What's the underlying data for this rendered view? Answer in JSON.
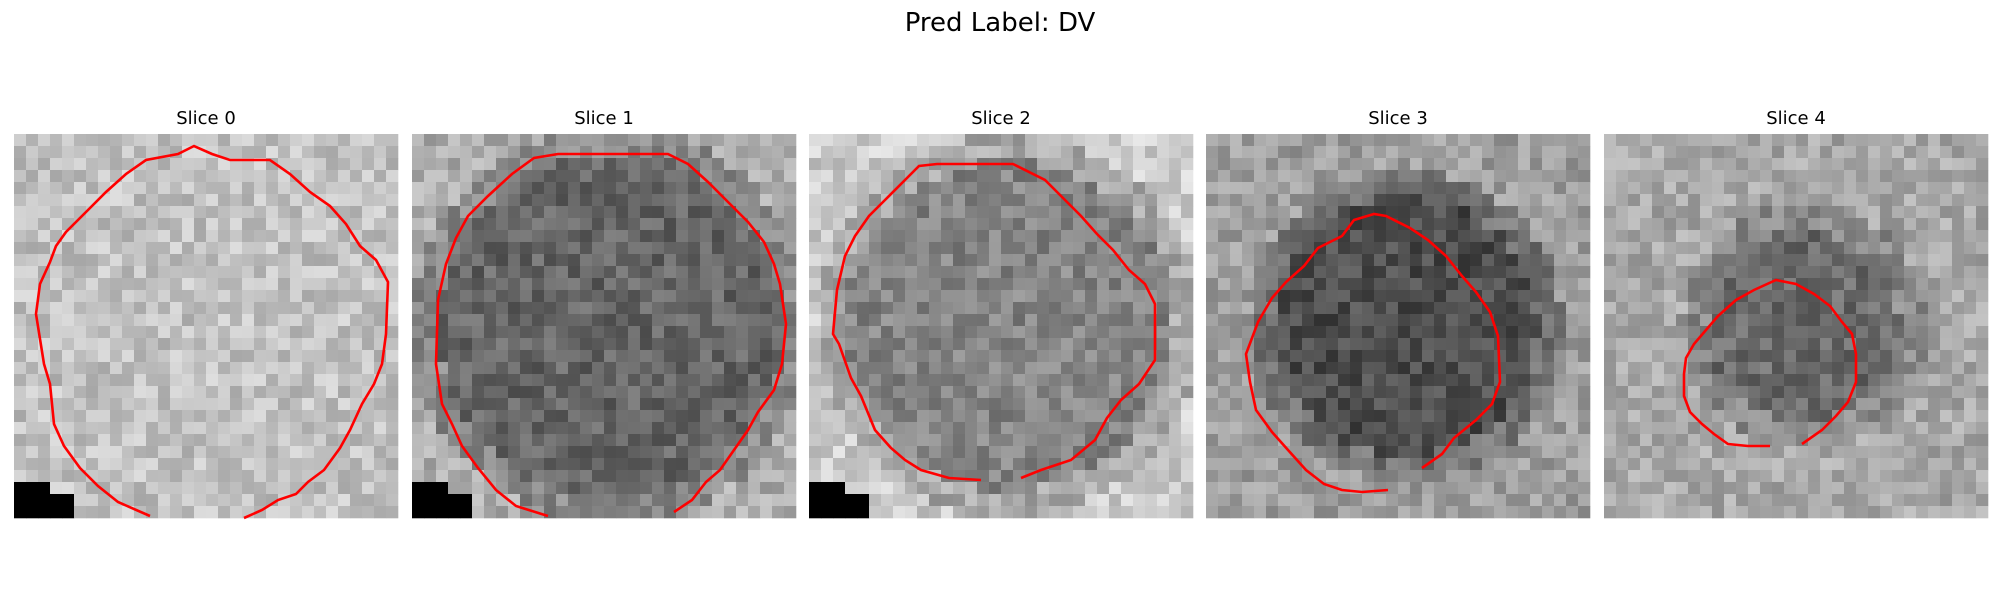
{
  "figure": {
    "title": "Pred Label: DV"
  },
  "outline_color": "#ff0000",
  "slices": [
    {
      "title": "Slice 0",
      "mean_gray": 0.76,
      "inner_gray": 0.76,
      "inner_radius_fraction": 0.45
    },
    {
      "title": "Slice 1",
      "mean_gray": 0.68,
      "inner_gray": 0.4,
      "inner_radius_fraction": 0.45
    },
    {
      "title": "Slice 2",
      "mean_gray": 0.8,
      "inner_gray": 0.52,
      "inner_radius_fraction": 0.43
    },
    {
      "title": "Slice 3",
      "mean_gray": 0.62,
      "inner_gray": 0.3,
      "inner_radius_fraction": 0.34
    },
    {
      "title": "Slice 4",
      "mean_gray": 0.66,
      "inner_gray": 0.42,
      "inner_radius_fraction": 0.25
    }
  ]
}
